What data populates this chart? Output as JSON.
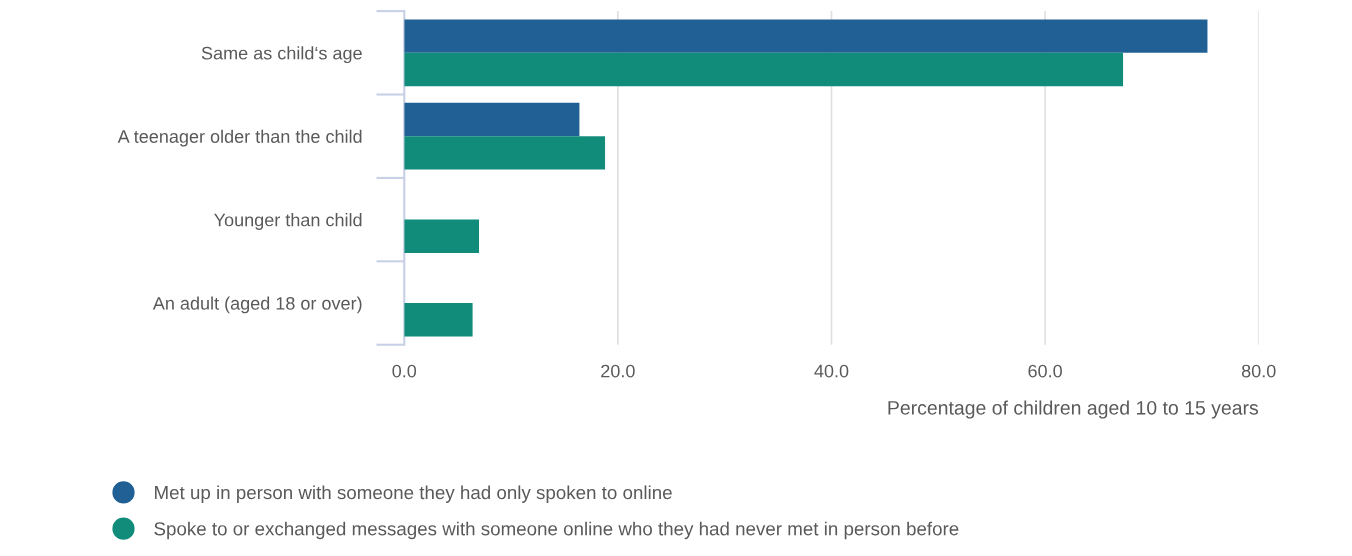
{
  "chart_data": {
    "type": "bar",
    "orientation": "horizontal",
    "xlabel": "Percentage of children aged 10 to 15 years",
    "categories": [
      "Same as child‘s age",
      "A teenager older than the child",
      "Younger than child",
      "An adult (aged 18 or over)"
    ],
    "series": [
      {
        "name": "Met up in person with someone they had only spoken to online",
        "color": "#206095",
        "values": [
          75.2,
          16.4,
          null,
          null
        ]
      },
      {
        "name": "Spoke to or exchanged messages with someone online who they had never met in person before",
        "color": "#118c7b",
        "values": [
          67.3,
          18.8,
          7.0,
          6.4
        ]
      }
    ],
    "xlim": [
      0,
      80
    ],
    "xticks": [
      {
        "value": 0,
        "label": "0.0"
      },
      {
        "value": 20,
        "label": "20.0"
      },
      {
        "value": 40,
        "label": "40.0"
      },
      {
        "value": 60,
        "label": "60.0"
      },
      {
        "value": 80,
        "label": "80.0"
      }
    ],
    "grid": "x",
    "legend": "bottom"
  }
}
